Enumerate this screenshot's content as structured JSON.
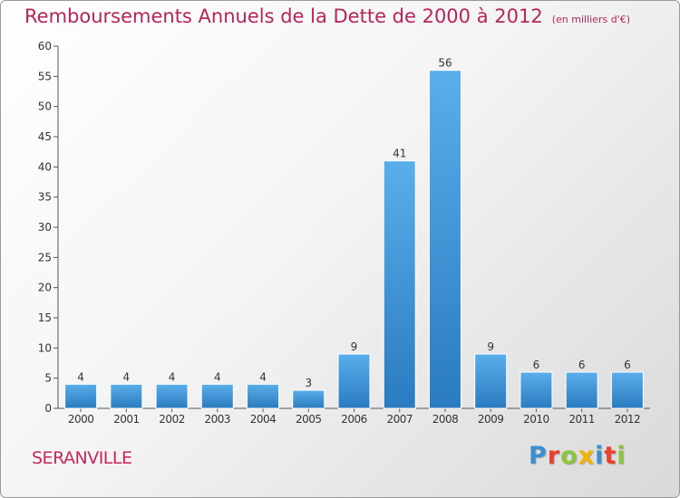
{
  "chart_data": {
    "type": "bar",
    "title": "Remboursements Annuels de la Dette de 2000 à 2012",
    "subtitle": "(en milliers d'€)",
    "categories": [
      "2000",
      "2001",
      "2002",
      "2003",
      "2004",
      "2005",
      "2006",
      "2007",
      "2008",
      "2009",
      "2010",
      "2011",
      "2012"
    ],
    "values": [
      4,
      4,
      4,
      4,
      4,
      3,
      9,
      41,
      56,
      9,
      6,
      6,
      6
    ],
    "ylim": [
      0,
      60
    ],
    "yticks": [
      0,
      5,
      10,
      15,
      20,
      25,
      30,
      35,
      40,
      45,
      50,
      55,
      60
    ],
    "grid": false,
    "bar_color": "#3d8fd6",
    "data_labels": true
  },
  "commune": "SERANVILLE",
  "logo": {
    "letters": [
      {
        "char": "P",
        "color": "#3a8fd0"
      },
      {
        "char": "r",
        "color": "#e8412c"
      },
      {
        "char": "o",
        "color": "#8cc63f"
      },
      {
        "char": "x",
        "color": "#f5b400"
      },
      {
        "char": "i",
        "color": "#3a8fd0"
      },
      {
        "char": "t",
        "color": "#e8412c"
      },
      {
        "char": "i",
        "color": "#8cc63f"
      }
    ]
  },
  "colors": {
    "title": "#b5245a",
    "commune": "#c5285f"
  }
}
